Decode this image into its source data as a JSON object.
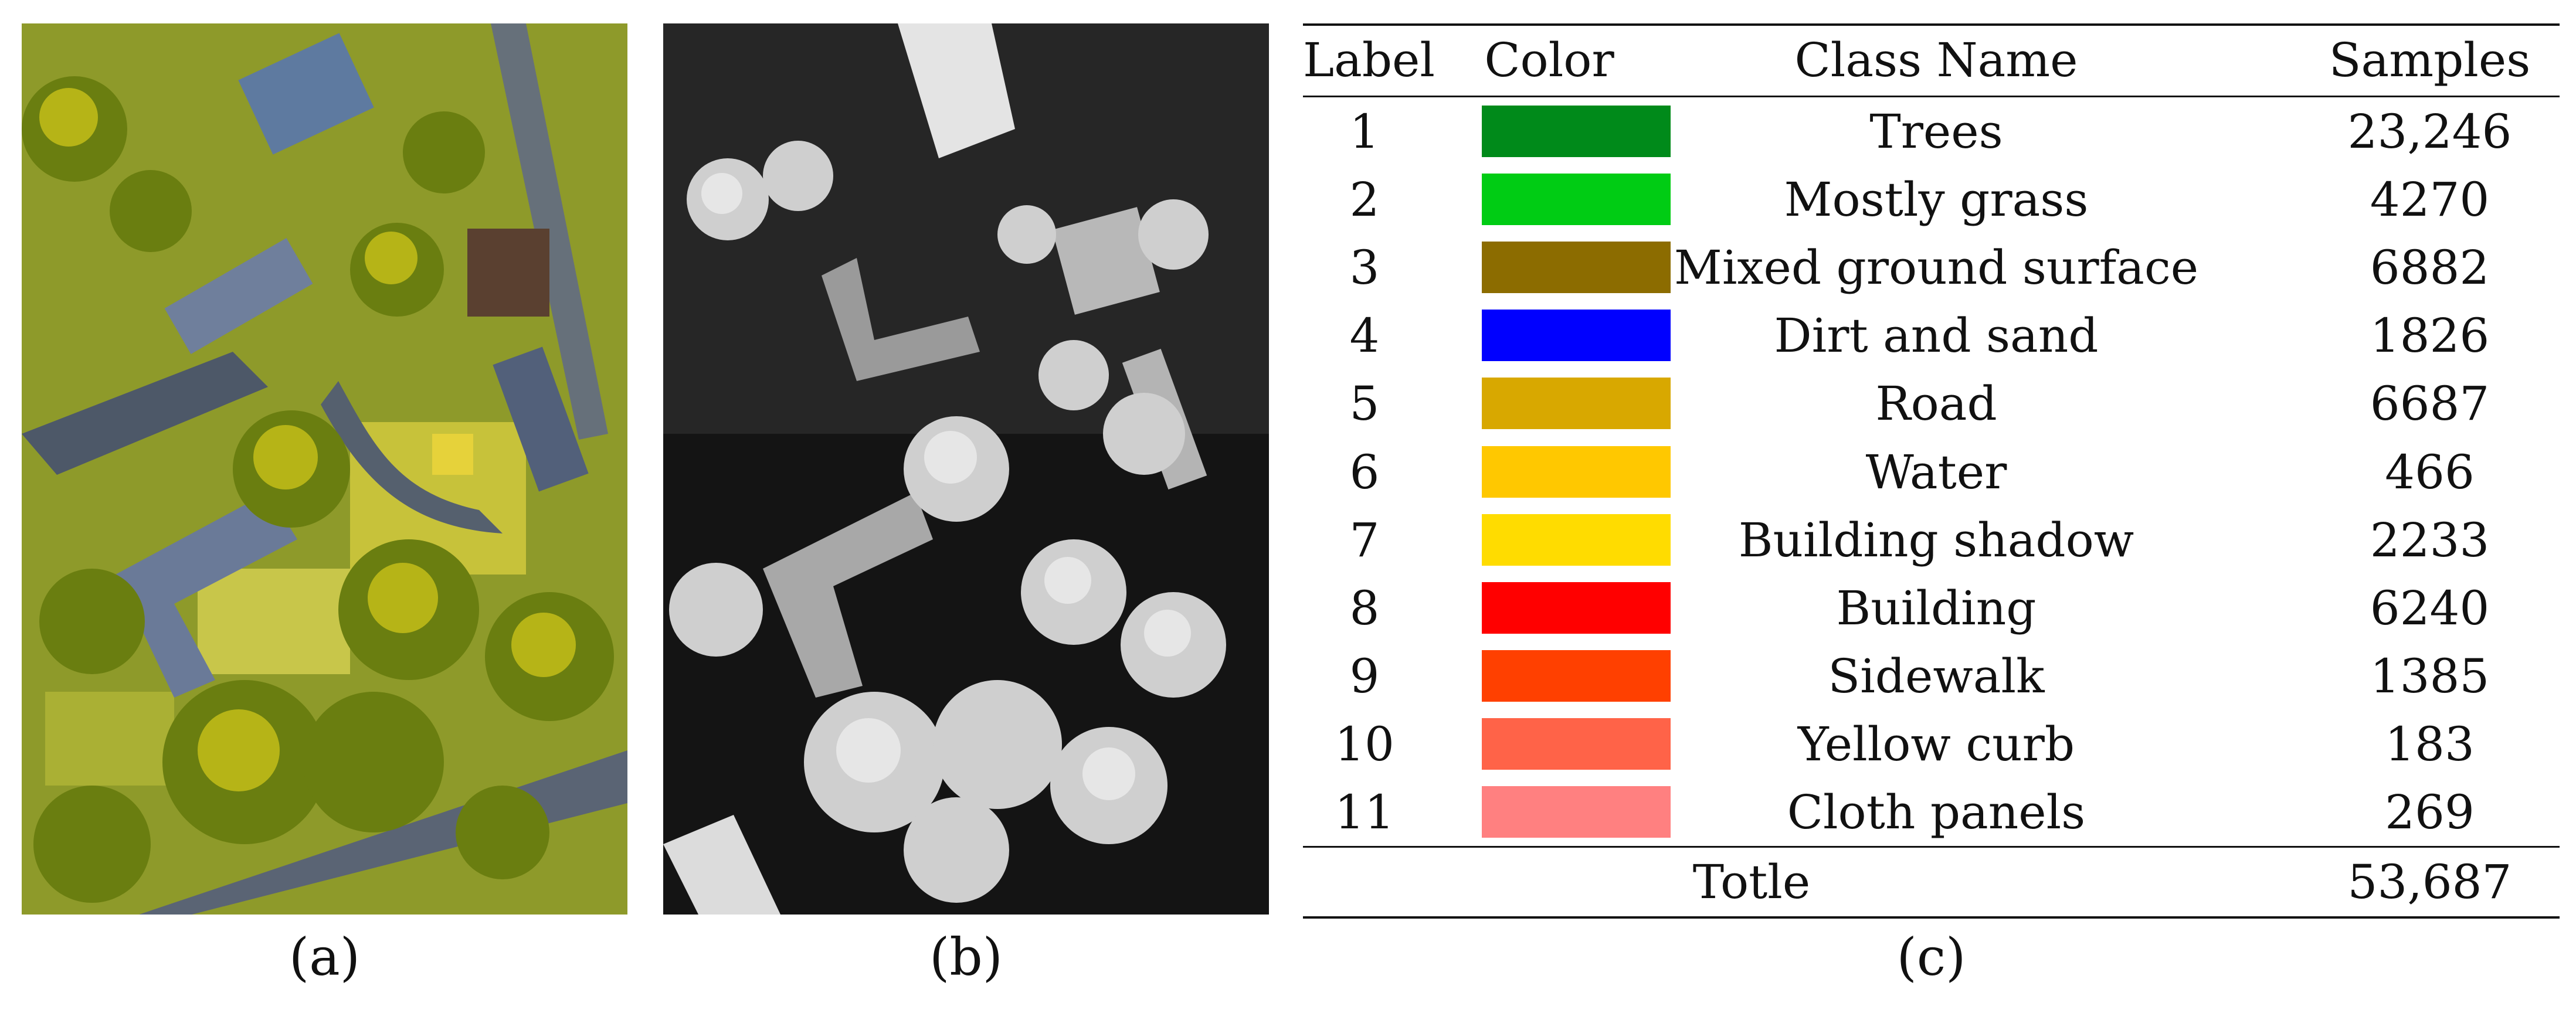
{
  "captions": {
    "a": "(a)",
    "b": "(b)",
    "c": "(c)"
  },
  "panel_a": {
    "image": "aerial false-color hyperspectral scene: trees, grass, roads, buildings"
  },
  "panel_b": {
    "image": "grayscale LiDAR elevation raster of the same scene"
  },
  "table": {
    "headers": {
      "label": "Label",
      "color": "Color",
      "class_name": "Class Name",
      "samples": "Samples"
    },
    "rows": [
      {
        "label": "1",
        "color": "#008a1a",
        "class_name": "Trees",
        "samples": "23,246"
      },
      {
        "label": "2",
        "color": "#00cc14",
        "class_name": "Mostly grass",
        "samples": "4270"
      },
      {
        "label": "3",
        "color": "#8c6c00",
        "class_name": "Mixed ground surface",
        "samples": "6882"
      },
      {
        "label": "4",
        "color": "#0000ff",
        "class_name": "Dirt and sand",
        "samples": "1826"
      },
      {
        "label": "5",
        "color": "#d8a800",
        "class_name": "Road",
        "samples": "6687"
      },
      {
        "label": "6",
        "color": "#ffc800",
        "class_name": "Water",
        "samples": "466"
      },
      {
        "label": "7",
        "color": "#ffdc00",
        "class_name": "Building shadow",
        "samples": "2233"
      },
      {
        "label": "8",
        "color": "#ff0000",
        "class_name": "Building",
        "samples": "6240"
      },
      {
        "label": "9",
        "color": "#ff4000",
        "class_name": "Sidewalk",
        "samples": "1385"
      },
      {
        "label": "10",
        "color": "#ff6348",
        "class_name": "Yellow curb",
        "samples": "183"
      },
      {
        "label": "11",
        "color": "#ff8080",
        "class_name": "Cloth panels",
        "samples": "269"
      }
    ],
    "total": {
      "label": "Totle",
      "samples": "53,687"
    }
  }
}
